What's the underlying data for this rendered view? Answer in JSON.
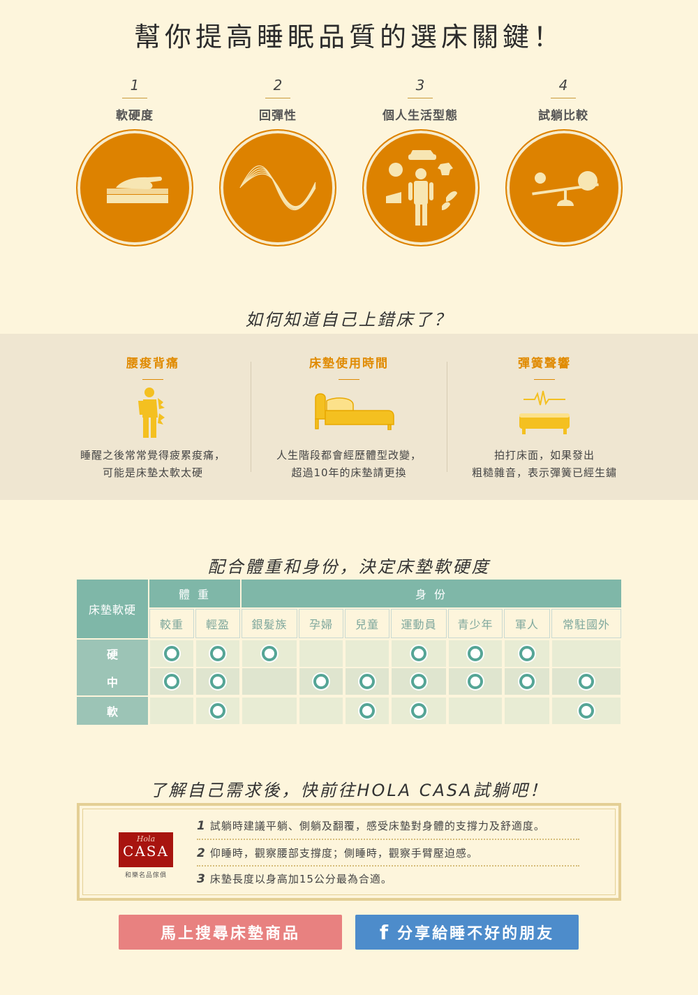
{
  "title": "幫你提高睡眠品質的選床關鍵！",
  "keys": [
    {
      "num": "1",
      "label": "軟硬度",
      "icon": "hand-mattress-icon"
    },
    {
      "num": "2",
      "label": "回彈性",
      "icon": "wave-icon"
    },
    {
      "num": "3",
      "label": "個人生活型態",
      "icon": "lifestyle-person-icon"
    },
    {
      "num": "4",
      "label": "試躺比較",
      "icon": "balance-scale-icon"
    }
  ],
  "section2": {
    "title": "如何知道自己上錯床了？",
    "signs": [
      {
        "title": "腰痠背痛",
        "icon": "back-pain-icon",
        "lines": [
          "睡醒之後常常覺得疲累痠痛，",
          "可能是床墊太軟太硬"
        ]
      },
      {
        "title": "床墊使用時間",
        "icon": "bed-icon",
        "lines": [
          "人生階段都會經歷體型改變，",
          "超過10年的床墊請更換"
        ]
      },
      {
        "title": "彈簧聲響",
        "icon": "spring-noise-icon",
        "lines": [
          "拍打床面，如果發出",
          "粗糙雜音，表示彈簧已經生鏽"
        ]
      }
    ]
  },
  "section3": {
    "title": "配合體重和身份，決定床墊軟硬度",
    "corner": "床墊軟硬",
    "weight_header": "體 重",
    "identity_header": "身 份",
    "columns": [
      "較重",
      "輕盈",
      "銀髮族",
      "孕婦",
      "兒童",
      "運動員",
      "青少年",
      "軍人",
      "常駐國外"
    ],
    "rows": [
      {
        "label": "硬",
        "marks": [
          true,
          true,
          true,
          false,
          false,
          true,
          true,
          true,
          false
        ]
      },
      {
        "label": "中",
        "marks": [
          true,
          true,
          false,
          true,
          true,
          true,
          true,
          true,
          true
        ]
      },
      {
        "label": "軟",
        "marks": [
          false,
          true,
          false,
          false,
          true,
          true,
          false,
          false,
          true
        ]
      }
    ]
  },
  "section4": {
    "title": "了解自己需求後，快前往HOLA CASA試躺吧！",
    "logo_script": "Hola",
    "logo_main": "CASA",
    "logo_sub": "和樂名品傢俱",
    "tips": [
      {
        "num": "1",
        "text": "試躺時建議平躺、側躺及翻覆，感受床墊對身體的支撐力及舒適度。"
      },
      {
        "num": "2",
        "text": "仰睡時，觀察腰部支撐度；側睡時，觀察手臂壓迫感。"
      },
      {
        "num": "3",
        "text": "床墊長度以身高加15公分最為合適。"
      }
    ]
  },
  "buttons": {
    "search": "馬上搜尋床墊商品",
    "share": "分享給睡不好的朋友",
    "share_icon": "facebook-icon"
  },
  "colors": {
    "background": "#fdf5dc",
    "orange": "#dd8200",
    "teal": "#7fb7a8",
    "search_button": "#e88180",
    "share_button": "#4d8ccb"
  }
}
